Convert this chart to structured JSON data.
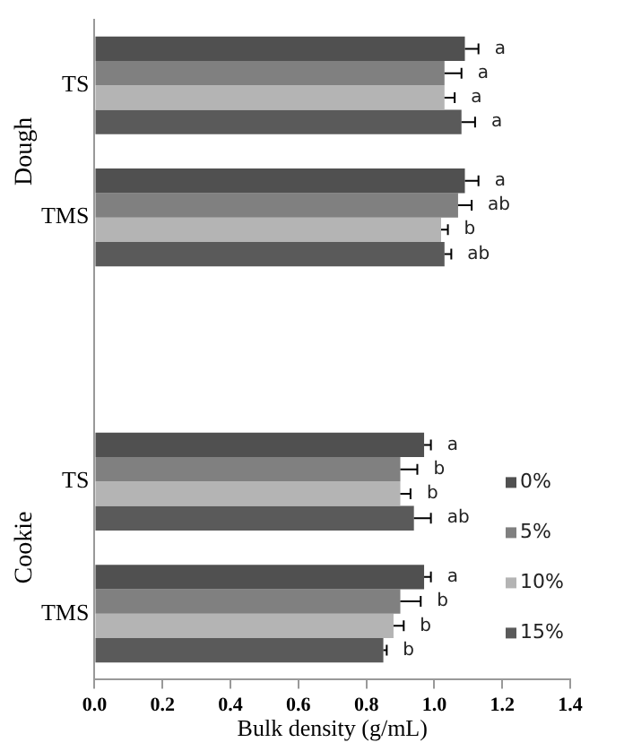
{
  "chart_data": {
    "type": "bar",
    "orientation": "horizontal",
    "xlabel": "Bulk density (g/mL)",
    "categories": [
      "TS",
      "TMS",
      null,
      "TS",
      "TMS"
    ],
    "series": [
      {
        "name": "0%",
        "color": "#505050",
        "values": [
          1.09,
          1.09,
          null,
          0.97,
          0.97
        ],
        "errors": [
          0.04,
          0.04,
          null,
          0.02,
          0.02
        ],
        "value_labels": [
          "a",
          "a",
          null,
          "a",
          "a"
        ]
      },
      {
        "name": "5%",
        "color": "#808080",
        "values": [
          1.03,
          1.07,
          null,
          0.9,
          0.9
        ],
        "errors": [
          0.05,
          0.04,
          null,
          0.05,
          0.06
        ],
        "value_labels": [
          "a",
          "ab",
          null,
          "b",
          "b"
        ]
      },
      {
        "name": "10%",
        "color": "#b4b4b4",
        "values": [
          1.03,
          1.02,
          null,
          0.9,
          0.88
        ],
        "errors": [
          0.03,
          0.02,
          null,
          0.03,
          0.03
        ],
        "value_labels": [
          "a",
          "b",
          null,
          "b",
          "b"
        ]
      },
      {
        "name": "15%",
        "color": "#5a5a5a",
        "values": [
          1.08,
          1.03,
          null,
          0.94,
          0.85
        ],
        "errors": [
          0.04,
          0.02,
          null,
          0.05,
          0.01
        ],
        "value_labels": [
          "a",
          "ab",
          null,
          "ab",
          "b"
        ]
      }
    ],
    "annotations": [
      "Dough",
      "Cookie"
    ],
    "xlim": [
      0,
      1.4
    ],
    "xticks": [
      {
        "value": 0,
        "label": "0.0"
      },
      0.2,
      0.4,
      0.6,
      0.8,
      {
        "value": 1,
        "label": "1.0"
      },
      1.2,
      1.4
    ],
    "grid": false,
    "legend": "bottom right"
  }
}
